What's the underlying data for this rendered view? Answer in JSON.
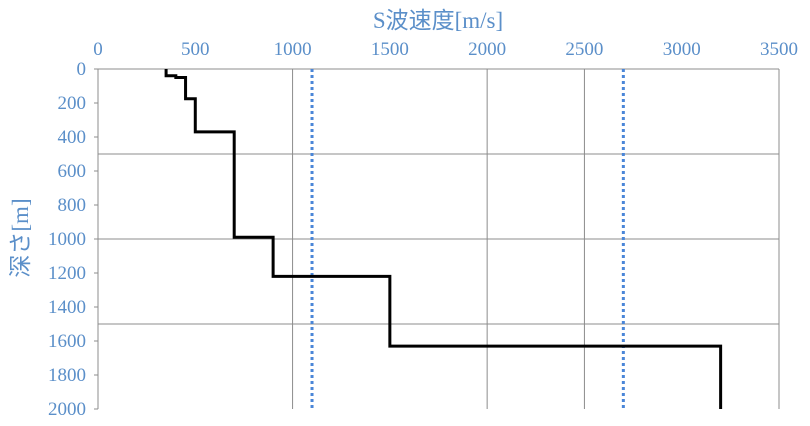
{
  "chart_data": {
    "type": "line",
    "title": "",
    "xlabel": "S波速度[m/s]",
    "ylabel": "深さ[m]",
    "x_axis_position": "top",
    "y_axis_inverted": true,
    "xlim": [
      0,
      3500
    ],
    "ylim": [
      0,
      2000
    ],
    "xticks": [
      "0",
      "500",
      "1000",
      "1500",
      "2000",
      "2500",
      "3000",
      "3500"
    ],
    "yticks": [
      "0",
      "200",
      "400",
      "600",
      "800",
      "1000",
      "1200",
      "1400",
      "1600",
      "1800",
      "2000"
    ],
    "x_gridlines": [
      1000,
      2000,
      2500
    ],
    "y_gridlines": [
      500,
      1000,
      1500
    ],
    "profile": {
      "color": "#000000",
      "style": "solid",
      "points": [
        {
          "x": 350,
          "y": 0
        },
        {
          "x": 350,
          "y": 40
        },
        {
          "x": 400,
          "y": 40
        },
        {
          "x": 400,
          "y": 50
        },
        {
          "x": 450,
          "y": 50
        },
        {
          "x": 450,
          "y": 175
        },
        {
          "x": 500,
          "y": 175
        },
        {
          "x": 500,
          "y": 370
        },
        {
          "x": 700,
          "y": 370
        },
        {
          "x": 700,
          "y": 990
        },
        {
          "x": 900,
          "y": 990
        },
        {
          "x": 900,
          "y": 1220
        },
        {
          "x": 1500,
          "y": 1220
        },
        {
          "x": 1500,
          "y": 1630
        },
        {
          "x": 3200,
          "y": 1630
        },
        {
          "x": 3200,
          "y": 2000
        }
      ]
    },
    "reference_lines": [
      {
        "x": 1100,
        "color": "#4a86d8",
        "style": "dotted"
      },
      {
        "x": 2700,
        "color": "#4a86d8",
        "style": "dotted"
      }
    ],
    "label_color": "#5b8fc9",
    "grid": true
  }
}
